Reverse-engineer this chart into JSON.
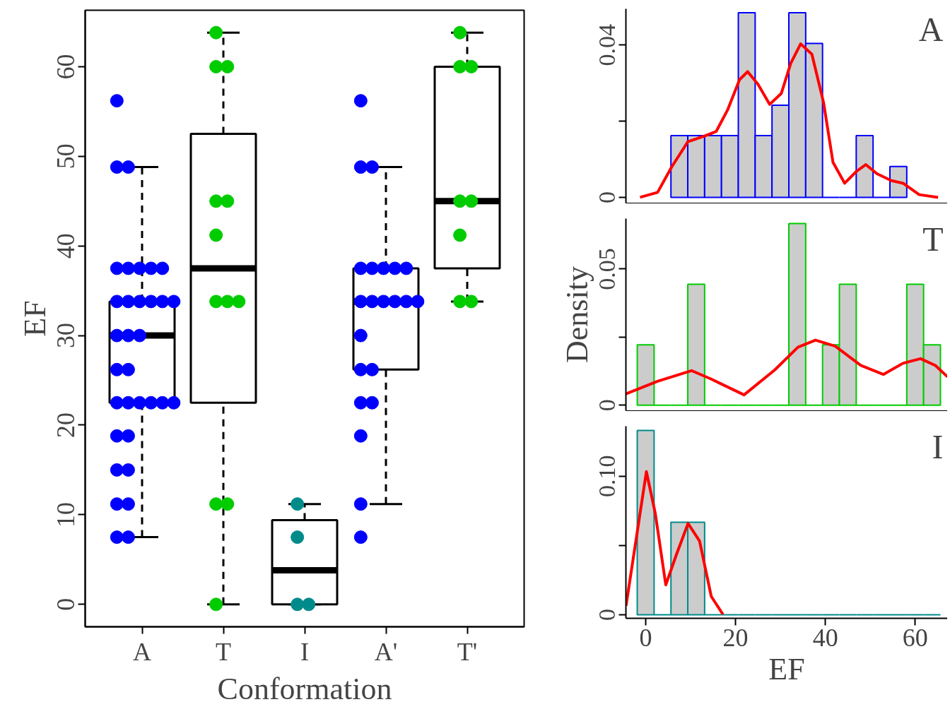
{
  "chart_data": [
    {
      "type": "box",
      "xlabel": "Conformation",
      "ylabel": "EF",
      "categories": [
        "A",
        "T",
        "I",
        "A'",
        "T'"
      ],
      "ylim": [
        -2.5,
        66.3
      ],
      "yticks": [
        0,
        10,
        20,
        30,
        40,
        50,
        60
      ],
      "boxes": [
        {
          "low": 7.5,
          "q1": 22.5,
          "median": 30,
          "q3": 33.8,
          "high": 48.8
        },
        {
          "low": 0,
          "q1": 22.5,
          "median": 37.5,
          "q3": 52.5,
          "high": 63.8
        },
        {
          "low": 0,
          "q1": 0,
          "median": 3.8,
          "q3": 9.4,
          "high": 11.2
        },
        {
          "low": 11.2,
          "q1": 26.2,
          "median": 33.8,
          "q3": 37.5,
          "high": 48.8
        },
        {
          "low": 33.8,
          "q1": 37.5,
          "median": 45,
          "q3": 60,
          "high": 63.8
        }
      ],
      "series": [
        {
          "type": "scatter",
          "color": "#0000ff",
          "x": [
            "A",
            "A",
            "A",
            "A",
            "A",
            "A",
            "A",
            "A",
            "A",
            "A",
            "A",
            "A",
            "A",
            "A",
            "A",
            "A",
            "A",
            "A",
            "A",
            "A",
            "A",
            "A",
            "A",
            "A",
            "A",
            "A",
            "A",
            "A",
            "A",
            "A",
            "A",
            "A",
            "A"
          ],
          "values": [
            56.2,
            48.8,
            48.8,
            37.5,
            37.5,
            37.5,
            37.5,
            37.5,
            33.8,
            33.8,
            33.8,
            33.8,
            33.8,
            33.8,
            30,
            30,
            30,
            26.2,
            26.2,
            22.5,
            22.5,
            22.5,
            22.5,
            22.5,
            22.5,
            18.8,
            18.8,
            15,
            15,
            11.2,
            11.2,
            7.5,
            7.5
          ]
        },
        {
          "type": "scatter",
          "color": "#00cc00",
          "x": [
            "T",
            "T",
            "T",
            "T",
            "T",
            "T",
            "T",
            "T",
            "T",
            "T",
            "T",
            "T"
          ],
          "values": [
            63.8,
            60,
            60,
            45,
            45,
            41.2,
            33.8,
            33.8,
            33.8,
            11.2,
            11.2,
            0
          ]
        },
        {
          "type": "scatter",
          "color": "#008b8b",
          "x": [
            "I",
            "I",
            "I",
            "I"
          ],
          "values": [
            11.2,
            7.5,
            0,
            0
          ]
        },
        {
          "type": "scatter",
          "color": "#0000ff",
          "x": [
            "A'",
            "A'",
            "A'",
            "A'",
            "A'",
            "A'",
            "A'",
            "A'",
            "A'",
            "A'",
            "A'",
            "A'",
            "A'",
            "A'",
            "A'",
            "A'",
            "A'",
            "A'",
            "A'",
            "A'",
            "A'",
            "A'"
          ],
          "values": [
            56.2,
            48.8,
            48.8,
            37.5,
            37.5,
            37.5,
            37.5,
            37.5,
            33.8,
            33.8,
            33.8,
            33.8,
            33.8,
            33.8,
            30,
            26.2,
            26.2,
            22.5,
            22.5,
            18.8,
            11.2,
            7.5
          ]
        },
        {
          "type": "scatter",
          "color": "#00cc00",
          "x": [
            "T'",
            "T'",
            "T'",
            "T'",
            "T'",
            "T'",
            "T'",
            "T'"
          ],
          "values": [
            63.8,
            60,
            60,
            45,
            45,
            41.2,
            33.8,
            33.8
          ]
        }
      ]
    },
    {
      "type": "histogram",
      "annotations": [
        "A"
      ],
      "tick_labels": "y",
      "xlim": [
        -4.4,
        67.2
      ],
      "ylim": [
        -0.0015,
        0.0495
      ],
      "yticks": [
        0,
        {
          "value": 0.02,
          "label": null
        },
        0.04
      ],
      "bins": [
        5.625,
        9.375,
        13.125,
        16.875,
        20.625,
        24.375,
        28.125,
        31.875,
        35.625,
        39.375,
        43.125,
        46.875,
        50.625,
        54.375,
        58.125
      ],
      "series": [
        {
          "type": "histogram",
          "color": "#0000ff",
          "values": [
            0.0162,
            0.0162,
            0.0162,
            0.0162,
            0.0485,
            0.0162,
            0.0242,
            0.0485,
            0.0404,
            0,
            0,
            0.0162,
            0,
            0.0081
          ]
        },
        {
          "type": "line",
          "color": "#ff0000",
          "x": [
            -1.25,
            2.65,
            5.8,
            9.4,
            13.1,
            15.7,
            18.3,
            20.9,
            22.7,
            25.0,
            27.6,
            30.2,
            32.3,
            34.5,
            37.0,
            39.6,
            41.7,
            44.3,
            46.9,
            49.0,
            51.5,
            54.7,
            57.3,
            60.9,
            65.1
          ],
          "values": [
            0,
            0.0013,
            0.008,
            0.0146,
            0.0161,
            0.0173,
            0.0231,
            0.0309,
            0.033,
            0.0297,
            0.0244,
            0.0273,
            0.0352,
            0.0403,
            0.0376,
            0.0249,
            0.0092,
            0.0037,
            0.0068,
            0.0086,
            0.0062,
            0.0044,
            0.0037,
            0.0007,
            0
          ]
        }
      ]
    },
    {
      "type": "histogram",
      "annotations": [
        "T"
      ],
      "ylabel": "Density",
      "tick_labels": "y",
      "xlim": [
        -4.4,
        67.2
      ],
      "ylim": [
        -0.002,
        0.0685
      ],
      "yticks": [
        0,
        {
          "value": 0.025,
          "label": null
        },
        0.05
      ],
      "bins": [
        -1.875,
        1.875,
        5.625,
        9.375,
        13.125,
        16.875,
        20.625,
        24.375,
        28.125,
        31.875,
        35.625,
        39.375,
        43.125,
        46.875,
        50.625,
        54.375,
        58.125,
        61.875,
        65.625
      ],
      "series": [
        {
          "type": "histogram",
          "color": "#00cc00",
          "values": [
            0.0222,
            0,
            0,
            0.0444,
            0,
            0,
            0,
            0,
            0,
            0.0667,
            0,
            0.0222,
            0.0444,
            0,
            0,
            0,
            0.0444,
            0.0222
          ]
        },
        {
          "type": "line",
          "color": "#ff0000",
          "x": [
            -4.37,
            2.65,
            10.2,
            14.6,
            21.9,
            28.7,
            33.9,
            37.8,
            42.2,
            47.9,
            52.9,
            57.3,
            61.2,
            64.5,
            67.2
          ],
          "values": [
            0.0042,
            0.0088,
            0.0127,
            0.0096,
            0.0038,
            0.0129,
            0.0213,
            0.0239,
            0.0217,
            0.0146,
            0.0113,
            0.0154,
            0.0171,
            0.0146,
            0.0104
          ]
        }
      ]
    },
    {
      "type": "histogram",
      "annotations": [
        "I"
      ],
      "xlabel": "EF",
      "xlim": [
        -4.4,
        67.2
      ],
      "xticks": [
        0,
        20,
        40,
        60
      ],
      "ylim": [
        -0.0025,
        0.136
      ],
      "yticks": [
        0,
        {
          "value": 0.05,
          "label": null
        },
        {
          "value": 0.1,
          "label": "0.10"
        }
      ],
      "bins": [
        -1.875,
        1.875,
        5.625,
        9.375,
        13.125,
        16.875,
        20.625,
        24.375,
        28.125,
        31.875,
        35.625,
        39.375,
        43.125,
        46.875,
        50.625,
        54.375,
        58.125,
        61.875,
        65.625
      ],
      "series": [
        {
          "type": "histogram",
          "color": "#008b8b",
          "values": [
            0.133,
            0,
            0.0667,
            0.0667,
            0,
            0,
            0,
            0,
            0,
            0,
            0,
            0,
            0,
            0,
            0,
            0,
            0,
            0
          ]
        },
        {
          "type": "line",
          "color": "#ff0000",
          "x": [
            -4.37,
            -2.03,
            0.16,
            2.14,
            4.48,
            6.82,
            9.43,
            12.0,
            14.6,
            17.2
          ],
          "values": [
            0.0066,
            0.0565,
            0.1033,
            0.0731,
            0.0216,
            0.0432,
            0.0659,
            0.0532,
            0.0133,
            0.0003
          ]
        }
      ]
    }
  ]
}
